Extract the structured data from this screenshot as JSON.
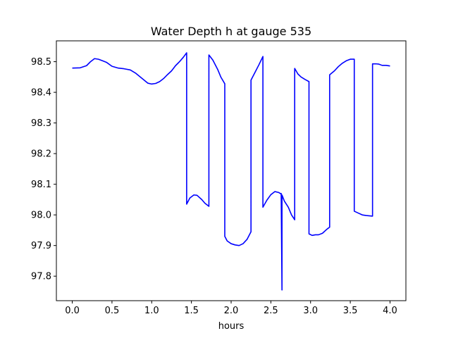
{
  "chart_data": {
    "type": "line",
    "title": "Water Depth h at gauge 535",
    "xlabel": "hours",
    "ylabel": "",
    "xlim": [
      -0.2,
      4.2
    ],
    "ylim": [
      97.72,
      98.568
    ],
    "xticks": [
      0.0,
      0.5,
      1.0,
      1.5,
      2.0,
      2.5,
      3.0,
      3.5,
      4.0
    ],
    "xtick_labels": [
      "0.0",
      "0.5",
      "1.0",
      "1.5",
      "2.0",
      "2.5",
      "3.0",
      "3.5",
      "4.0"
    ],
    "yticks": [
      97.8,
      97.9,
      98.0,
      98.1,
      98.2,
      98.3,
      98.4,
      98.5
    ],
    "ytick_labels": [
      "97.8",
      "97.9",
      "98.0",
      "98.1",
      "98.2",
      "98.3",
      "98.4",
      "98.5"
    ],
    "grid": false,
    "line_color": "#0000ff",
    "series": [
      {
        "x": [
          0.0,
          0.1,
          0.18,
          0.23,
          0.28,
          0.33,
          0.38,
          0.43,
          0.5,
          0.58,
          0.65,
          0.73,
          0.8,
          0.88,
          0.95,
          1.0,
          1.05,
          1.1,
          1.15,
          1.2,
          1.25,
          1.3,
          1.35,
          1.4,
          1.44,
          1.44,
          1.48,
          1.53,
          1.57,
          1.63,
          1.67,
          1.72,
          1.72,
          1.77,
          1.83,
          1.87,
          1.92,
          1.92,
          1.95,
          2.0,
          2.05,
          2.1,
          2.15,
          2.2,
          2.25,
          2.25,
          2.3,
          2.35,
          2.4,
          2.4,
          2.45,
          2.5,
          2.55,
          2.6,
          2.63,
          2.63,
          2.64,
          2.64,
          2.64,
          2.67,
          2.72,
          2.76,
          2.8,
          2.8,
          2.84,
          2.88,
          2.93,
          2.98,
          2.98,
          3.02,
          3.06,
          3.1,
          3.15,
          3.2,
          3.24,
          3.24,
          3.3,
          3.35,
          3.4,
          3.45,
          3.5,
          3.55,
          3.55,
          3.6,
          3.65,
          3.7,
          3.78,
          3.78,
          3.82,
          3.86,
          3.9,
          3.95,
          4.0
        ],
        "y": [
          98.479,
          98.48,
          98.487,
          98.5,
          98.51,
          98.508,
          98.503,
          98.498,
          98.485,
          98.479,
          98.477,
          98.473,
          98.462,
          98.445,
          98.43,
          98.427,
          98.429,
          98.435,
          98.445,
          98.458,
          98.47,
          98.487,
          98.5,
          98.515,
          98.529,
          98.035,
          98.055,
          98.065,
          98.064,
          98.05,
          98.038,
          98.028,
          98.522,
          98.505,
          98.475,
          98.45,
          98.428,
          97.93,
          97.915,
          97.906,
          97.902,
          97.9,
          97.906,
          97.92,
          97.945,
          98.44,
          98.465,
          98.49,
          98.517,
          98.025,
          98.048,
          98.066,
          98.076,
          98.073,
          98.068,
          98.07,
          97.755,
          98.065,
          98.065,
          98.045,
          98.025,
          98.0,
          97.984,
          98.478,
          98.46,
          98.45,
          98.442,
          98.435,
          97.938,
          97.933,
          97.935,
          97.935,
          97.94,
          97.952,
          97.96,
          98.457,
          98.47,
          98.484,
          98.495,
          98.503,
          98.508,
          98.508,
          98.012,
          98.006,
          98.0,
          97.998,
          97.996,
          98.493,
          98.493,
          98.492,
          98.488,
          98.488,
          98.486
        ]
      }
    ]
  }
}
